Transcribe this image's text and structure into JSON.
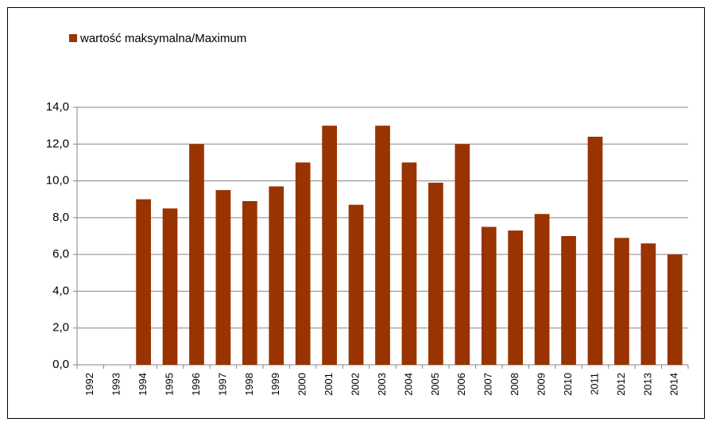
{
  "chart_data": {
    "type": "bar",
    "categories": [
      "1992",
      "1993",
      "1994",
      "1995",
      "1996",
      "1997",
      "1998",
      "1999",
      "2000",
      "2001",
      "2002",
      "2003",
      "2004",
      "2005",
      "2006",
      "2007",
      "2008",
      "2009",
      "2010",
      "2011",
      "2012",
      "2013",
      "2014"
    ],
    "series": [
      {
        "name": "wartość maksymalna/Maximum",
        "color": "#993300",
        "values": [
          null,
          null,
          9.0,
          8.5,
          12.0,
          9.5,
          8.9,
          9.7,
          11.0,
          13.0,
          8.7,
          13.0,
          11.0,
          9.9,
          12.0,
          7.5,
          7.3,
          8.2,
          7.0,
          12.4,
          6.9,
          6.6,
          6.0
        ]
      }
    ],
    "ylim": [
      0,
      14
    ],
    "yticks": [
      {
        "value": 0,
        "label": "0,0"
      },
      {
        "value": 2,
        "label": "2,0"
      },
      {
        "value": 4,
        "label": "4,0"
      },
      {
        "value": 6,
        "label": "6,0"
      },
      {
        "value": 8,
        "label": "8,0"
      },
      {
        "value": 10,
        "label": "10,0"
      },
      {
        "value": 12,
        "label": "12,0"
      },
      {
        "value": 14,
        "label": "14,0"
      }
    ],
    "grid": true,
    "legend": "top-left"
  }
}
